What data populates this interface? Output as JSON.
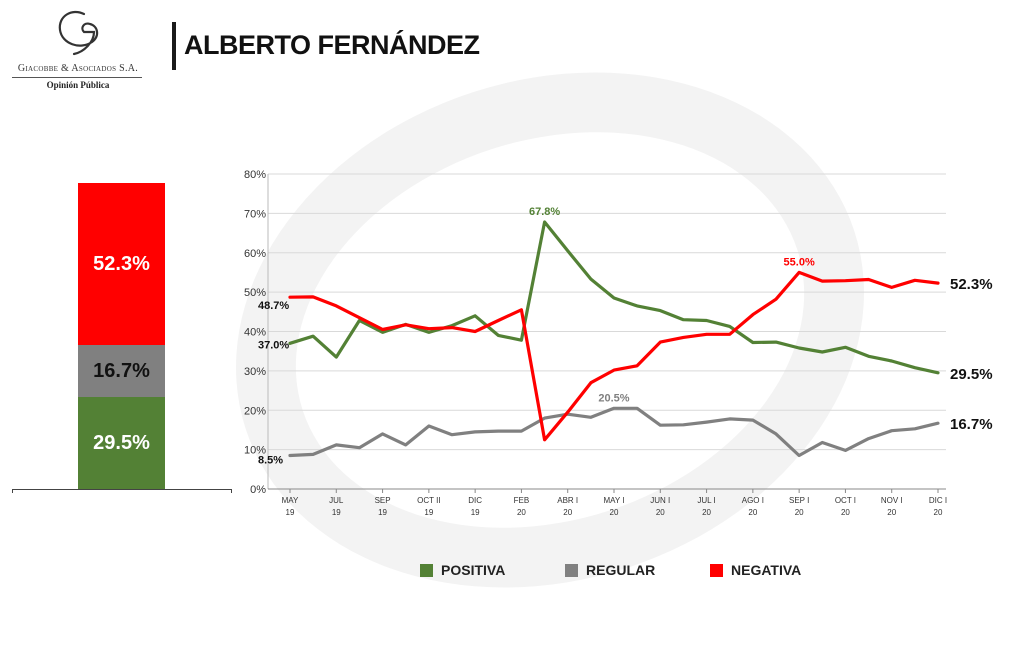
{
  "header": {
    "company": "Giacobbe & Asociados S.A.",
    "tagline": "Opinión Pública",
    "title": "ALBERTO FERNÁNDEZ"
  },
  "colors": {
    "positiva": "#538135",
    "regular": "#808080",
    "negativa": "#ff0000"
  },
  "stacked": {
    "negativa": {
      "value": 52.3,
      "label": "52.3%"
    },
    "regular": {
      "value": 16.7,
      "label": "16.7%"
    },
    "positiva": {
      "value": 29.5,
      "label": "29.5%"
    }
  },
  "legend": [
    {
      "key": "positiva",
      "label": "POSITIVA"
    },
    {
      "key": "regular",
      "label": "REGULAR"
    },
    {
      "key": "negativa",
      "label": "NEGATIVA"
    }
  ],
  "chart_data": {
    "type": "line",
    "title": "",
    "xlabel": "",
    "ylabel": "",
    "ylim": [
      0,
      80
    ],
    "y_ticks": [
      "0%",
      "10%",
      "20%",
      "30%",
      "40%",
      "50%",
      "60%",
      "70%",
      "80%"
    ],
    "grid": true,
    "legend_position": "bottom",
    "x_tick_labels": [
      [
        "MAY",
        "19"
      ],
      [
        "JUL",
        "19"
      ],
      [
        "SEP",
        "19"
      ],
      [
        "OCT II",
        "19"
      ],
      [
        "DIC",
        "19"
      ],
      [
        "FEB",
        "20"
      ],
      [
        "ABR I",
        "20"
      ],
      [
        "MAY I",
        "20"
      ],
      [
        "JUN I",
        "20"
      ],
      [
        "JUL I",
        "20"
      ],
      [
        "AGO I",
        "20"
      ],
      [
        "SEP I",
        "20"
      ],
      [
        "OCT I",
        "20"
      ],
      [
        "NOV I",
        "20"
      ],
      [
        "DIC I",
        "20"
      ]
    ],
    "series": [
      {
        "name": "POSITIVA",
        "key": "positiva",
        "values": [
          37.0,
          38.8,
          33.5,
          42.8,
          39.8,
          41.8,
          39.8,
          41.5,
          44.0,
          39.0,
          37.8,
          67.8,
          60.5,
          53.3,
          48.5,
          46.5,
          45.3,
          43.0,
          42.8,
          41.3,
          37.2,
          37.3,
          35.8,
          34.8,
          36.0,
          33.7,
          32.5,
          30.8,
          29.5
        ]
      },
      {
        "name": "REGULAR",
        "key": "regular",
        "values": [
          8.5,
          8.8,
          11.2,
          10.5,
          14.0,
          11.2,
          16.0,
          13.8,
          14.5,
          14.7,
          14.7,
          18.0,
          19.0,
          18.2,
          20.5,
          20.5,
          16.2,
          16.3,
          17.0,
          17.8,
          17.5,
          14.0,
          8.5,
          11.8,
          9.8,
          12.8,
          14.8,
          15.3,
          16.7
        ]
      },
      {
        "name": "NEGATIVA",
        "key": "negativa",
        "values": [
          48.7,
          48.8,
          46.5,
          43.5,
          40.5,
          41.7,
          40.7,
          41.0,
          40.0,
          42.8,
          45.5,
          12.5,
          19.5,
          27.0,
          30.2,
          31.3,
          37.3,
          38.5,
          39.3,
          39.3,
          44.3,
          48.2,
          55.0,
          52.8,
          52.9,
          53.2,
          51.2,
          53.0,
          52.3
        ]
      }
    ],
    "annotations": [
      {
        "series": "positiva",
        "index": 0,
        "text": "37.0%"
      },
      {
        "series": "regular",
        "index": 0,
        "text": "8.5%"
      },
      {
        "series": "negativa",
        "index": 0,
        "text": "48.7%"
      },
      {
        "series": "positiva",
        "index": 11,
        "text": "67.8%"
      },
      {
        "series": "regular",
        "index": 14,
        "text": "20.5%"
      },
      {
        "series": "negativa",
        "index": 22,
        "text": "55.0%"
      },
      {
        "series": "negativa",
        "index": 28,
        "text": "52.3%"
      },
      {
        "series": "positiva",
        "index": 28,
        "text": "29.5%"
      },
      {
        "series": "regular",
        "index": 28,
        "text": "16.7%"
      }
    ]
  }
}
